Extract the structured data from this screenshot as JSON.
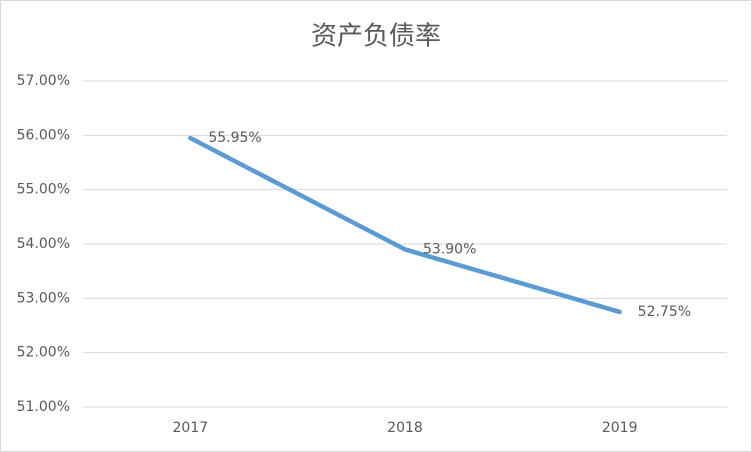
{
  "chart_data": {
    "type": "line",
    "title": "资产负债率",
    "categories": [
      "2017",
      "2018",
      "2019"
    ],
    "values": [
      55.95,
      53.9,
      52.75
    ],
    "value_labels": [
      "55.95%",
      "53.90%",
      "52.75%"
    ],
    "color": "#5b9bd5",
    "ylim": [
      51,
      57
    ],
    "yticks": [
      {
        "value": 51,
        "label": "51.00%"
      },
      {
        "value": 52,
        "label": "52.00%"
      },
      {
        "value": 53,
        "label": "53.00%"
      },
      {
        "value": 54,
        "label": "54.00%"
      },
      {
        "value": 55,
        "label": "55.00%"
      },
      {
        "value": 56,
        "label": "56.00%"
      },
      {
        "value": 57,
        "label": "57.00%"
      }
    ],
    "grid": true
  }
}
